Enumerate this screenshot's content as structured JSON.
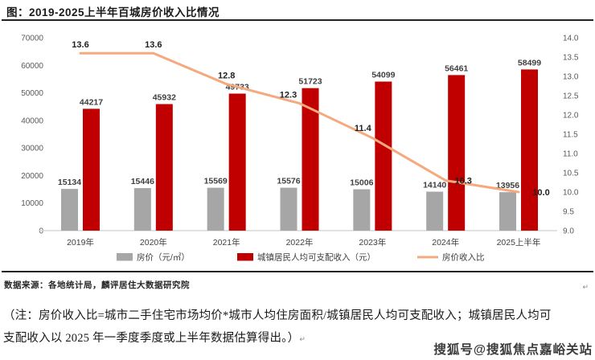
{
  "title": "图：2019-2025上半年百城房价收入比情况",
  "source": "数据来源：各地统计局，麟评居住大数据研究院",
  "note_line1": "（注：房价收入比=城市二手住宅市场均价*城市人均住房面积/城镇居民人均可支配收入；城镇居民人均可",
  "note_line2": "支配收入以 2025 年一季度季度或上半年数据估算得出。）",
  "paragraph_mark": "↵",
  "watermark": "搜狐号@搜狐焦点嘉峪关站",
  "colors": {
    "bar_price": "#A6A6A6",
    "bar_income": "#C00000",
    "ratio_line": "#F4A97E",
    "axis_line": "#D9D9D9"
  },
  "chart_data": {
    "type": "bar",
    "title": "2019-2025上半年百城房价收入比情况",
    "categories": [
      "2019年",
      "2020年",
      "2021年",
      "2022年",
      "2023年",
      "2024年",
      "2025上半年"
    ],
    "series": [
      {
        "name": "房价（元/㎡）",
        "type": "bar",
        "color": "#A6A6A6",
        "values": [
          15134,
          15446,
          15569,
          15576,
          15006,
          14140,
          13956
        ]
      },
      {
        "name": "城镇居民人均可支配收入（元）",
        "type": "bar",
        "color": "#C00000",
        "values": [
          44217,
          45932,
          49733,
          51723,
          54099,
          56461,
          58499
        ]
      },
      {
        "name": "房价收入比",
        "type": "line",
        "color": "#F4A97E",
        "values": [
          13.6,
          13.6,
          12.8,
          12.3,
          11.4,
          10.3,
          10.0
        ]
      }
    ],
    "left_axis": {
      "min": 0,
      "max": 70000,
      "step": 10000
    },
    "right_axis": {
      "min": 9.0,
      "max": 14.0,
      "step": 0.5
    },
    "grid": false,
    "legend_position": "bottom"
  }
}
